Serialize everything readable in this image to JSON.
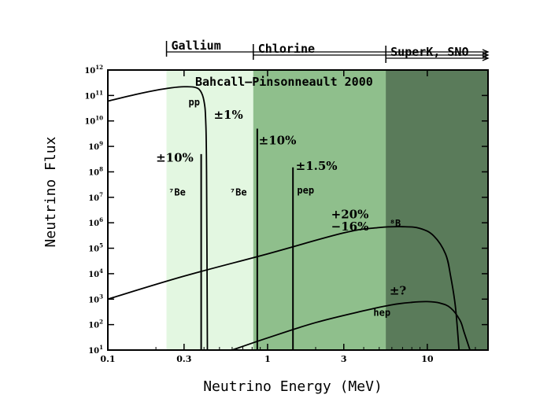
{
  "chart_data": {
    "type": "line",
    "title": "Bahcall–Pinsonneault 2000",
    "xlabel": "Neutrino Energy (MeV)",
    "ylabel": "Neutrino Flux",
    "x_scale": "log",
    "y_scale": "log",
    "xlim": [
      0.1,
      24
    ],
    "ylim": [
      10,
      1000000000000.0
    ],
    "x_ticks": [
      {
        "value": 0.1,
        "label": "0.1"
      },
      {
        "value": 0.3,
        "label": "0.3"
      },
      {
        "value": 1,
        "label": "1"
      },
      {
        "value": 3,
        "label": "3"
      },
      {
        "value": 10,
        "label": "10"
      }
    ],
    "y_ticks": [
      {
        "exp": 1,
        "base": "10",
        "sup": "1"
      },
      {
        "exp": 2,
        "base": "10",
        "sup": "2"
      },
      {
        "exp": 3,
        "base": "10",
        "sup": "3"
      },
      {
        "exp": 4,
        "base": "10",
        "sup": "4"
      },
      {
        "exp": 5,
        "base": "10",
        "sup": "5"
      },
      {
        "exp": 6,
        "base": "10",
        "sup": "6"
      },
      {
        "exp": 7,
        "base": "10",
        "sup": "7"
      },
      {
        "exp": 8,
        "base": "10",
        "sup": "8"
      },
      {
        "exp": 9,
        "base": "10",
        "sup": "9"
      },
      {
        "exp": 10,
        "base": "10",
        "sup": "10"
      },
      {
        "exp": 11,
        "base": "10",
        "sup": "11"
      },
      {
        "exp": 12,
        "base": "10",
        "sup": "12"
      }
    ],
    "regions": [
      {
        "name": "Gallium",
        "x_start": 0.233,
        "color": "#e3f7e1"
      },
      {
        "name": "Chlorine",
        "x_start": 0.814,
        "color": "#8fbf8c"
      },
      {
        "name": "SuperK, SNO",
        "x_start": 5.5,
        "color": "#5a7b5a"
      }
    ],
    "series": [
      {
        "name": "pp",
        "x": [
          0.1,
          0.15,
          0.2,
          0.25,
          0.3,
          0.35,
          0.38,
          0.4,
          0.41,
          0.415,
          0.42
        ],
        "y": [
          60000000000.0,
          110000000000.0,
          160000000000.0,
          200000000000.0,
          220000000000.0,
          210000000000.0,
          150000000000.0,
          60000000000.0,
          10000000000.0,
          100000000.0,
          10
        ]
      },
      {
        "name": "8B",
        "x": [
          0.1,
          0.3,
          1,
          3,
          5,
          7,
          9,
          11,
          13,
          14,
          15,
          15.8
        ],
        "y": [
          1000,
          8000,
          60000,
          400000,
          650000,
          700000,
          600000,
          300000,
          60000,
          8000,
          500,
          10
        ]
      },
      {
        "name": "hep",
        "x": [
          0.6,
          1,
          2,
          4,
          6,
          8,
          10,
          12,
          14,
          16,
          17,
          18.5
        ],
        "y": [
          10,
          30,
          120,
          350,
          600,
          750,
          800,
          700,
          450,
          150,
          50,
          10
        ]
      }
    ],
    "lines": [
      {
        "name": "7Be",
        "energy": 0.384,
        "flux": 500000000.0
      },
      {
        "name": "7Be",
        "energy": 0.862,
        "flux": 5000000000.0
      },
      {
        "name": "pep",
        "energy": 1.442,
        "flux": 150000000.0
      }
    ],
    "annotations": [
      {
        "text": "pp",
        "x": 0.32,
        "y": 40000000000.0
      },
      {
        "text": "±1%",
        "x": 0.46,
        "y": 12000000000.0
      },
      {
        "text": "±10%",
        "x": 0.88,
        "y": 1200000000.0
      },
      {
        "text": "±10%",
        "x": 0.2,
        "y": 250000000.0
      },
      {
        "text": "±1.5%",
        "x": 1.5,
        "y": 120000000.0
      },
      {
        "text": "⁷Be",
        "x": 0.24,
        "y": 12000000.0
      },
      {
        "text": "⁷Be",
        "x": 0.58,
        "y": 12000000.0
      },
      {
        "text": "pep",
        "x": 1.53,
        "y": 14000000.0
      },
      {
        "text": "+20%",
        "x": 2.5,
        "y": 1500000.0
      },
      {
        "text": "−16%",
        "x": 2.5,
        "y": 500000.0
      },
      {
        "text": "⁸B",
        "x": 5.8,
        "y": 700000.0
      },
      {
        "text": "±?",
        "x": 5.8,
        "y": 1500.0
      },
      {
        "text": "hep",
        "x": 4.6,
        "y": 220
      }
    ],
    "grid": false,
    "legend": "none"
  },
  "detectors": [
    {
      "name": "Gallium",
      "start": 0.233
    },
    {
      "name": "Chlorine",
      "start": 0.814
    },
    {
      "name": "SuperK, SNO",
      "start": 5.5
    }
  ]
}
